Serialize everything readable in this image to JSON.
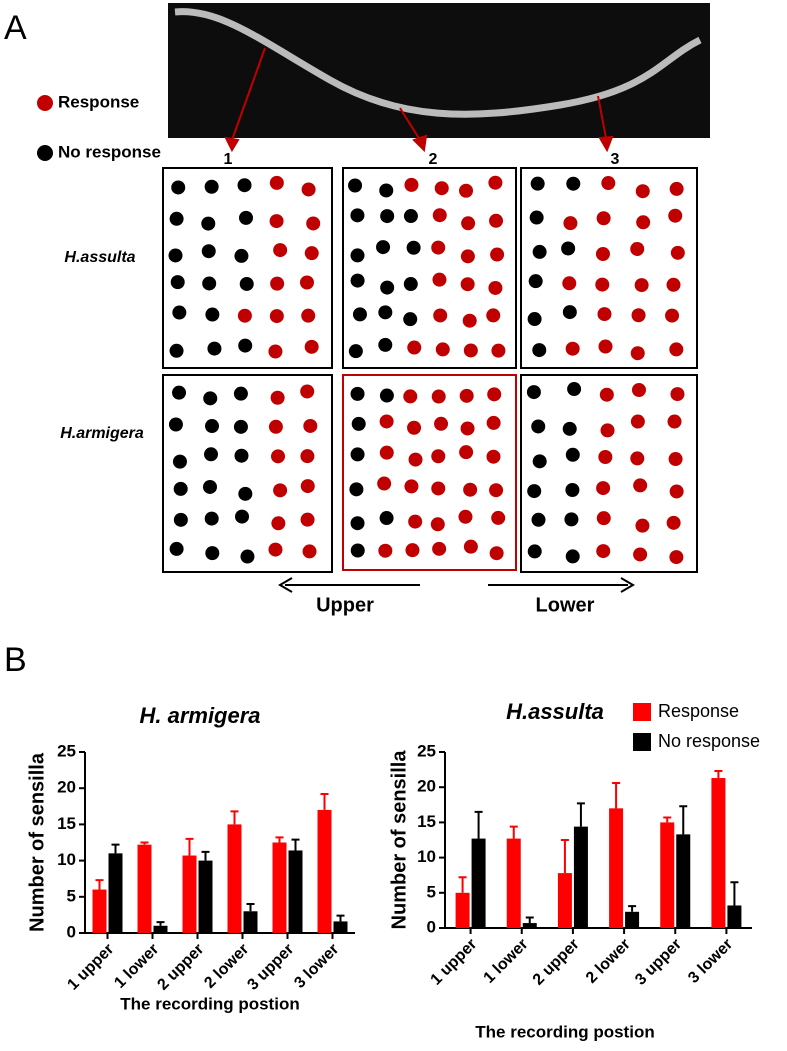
{
  "panel_a": {
    "label": "A",
    "legend": [
      {
        "name": "Response",
        "color": "#c00000"
      },
      {
        "name": "No response",
        "color": "#000000"
      }
    ],
    "positions": [
      "1",
      "2",
      "3"
    ],
    "species": [
      "H.assulta",
      "H.armigera"
    ],
    "directions": [
      "Upper",
      "Lower"
    ]
  },
  "panel_b": {
    "label": "B"
  },
  "chart_data": [
    {
      "type": "bar",
      "title": "H. armigera",
      "ylabel": "Number of sensilla",
      "xlabel": "The recording postion",
      "categories": [
        "1 upper",
        "1  lower",
        "2 upper",
        "2  lower",
        "3 upper",
        "3 lower"
      ],
      "series": [
        {
          "color": "#ff0000",
          "values": [
            6,
            12.2,
            10.7,
            15,
            12.5,
            17
          ],
          "errors": [
            1.3,
            0.3,
            2.3,
            1.8,
            0.7,
            2.2
          ]
        },
        {
          "color": "#000000",
          "values": [
            11,
            1,
            10,
            3,
            11.4,
            1.6
          ],
          "errors": [
            1.2,
            0.5,
            1.2,
            1,
            1.5,
            0.8
          ]
        }
      ],
      "ylim": [
        0,
        25
      ],
      "yticks": [
        0,
        5,
        10,
        15,
        20,
        25
      ]
    },
    {
      "type": "bar",
      "title": "H.assulta",
      "ylabel": "Number of sensilla",
      "xlabel": "The recording postion",
      "categories": [
        "1 upper",
        "1 lower",
        "2 upper",
        "2 lower",
        "3 upper",
        "3 lower"
      ],
      "series": [
        {
          "name": "Response",
          "color": "#ff0000",
          "values": [
            5,
            12.7,
            7.8,
            17,
            15,
            21.3
          ],
          "errors": [
            2.2,
            1.7,
            4.7,
            3.6,
            0.7,
            1
          ]
        },
        {
          "name": "No response",
          "color": "#000000",
          "values": [
            12.7,
            0.7,
            14.4,
            2.3,
            13.3,
            3.2
          ],
          "errors": [
            3.8,
            0.8,
            3.3,
            0.8,
            4,
            3.3
          ]
        }
      ],
      "ylim": [
        0,
        25
      ],
      "yticks": [
        0,
        5,
        10,
        15,
        20,
        25
      ],
      "legend": "top-right"
    }
  ]
}
